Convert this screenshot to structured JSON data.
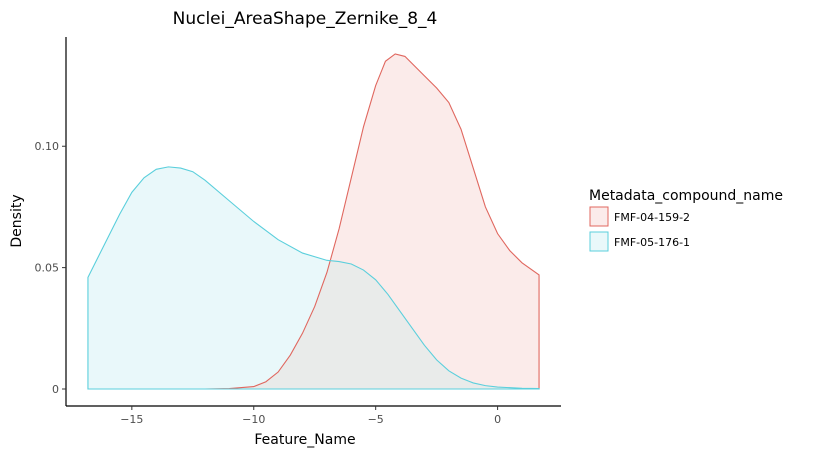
{
  "chart_data": {
    "type": "area",
    "title": "Nuclei_AreaShape_Zernike_8_4",
    "xlabel": "Feature_Name",
    "ylabel": "Density",
    "xlim": [
      -17.7,
      2.6
    ],
    "ylim": [
      -0.007,
      0.145
    ],
    "x_ticks": [
      -15,
      -10,
      -5,
      0
    ],
    "x_tick_labels": [
      "−15",
      "−10",
      "−5",
      "0"
    ],
    "y_ticks": [
      0,
      0.05,
      0.1
    ],
    "y_tick_labels": [
      "0",
      "0.05",
      "0.10"
    ],
    "grid": false,
    "legend": {
      "title": "Metadata_compound_name",
      "placement": "right"
    },
    "series": [
      {
        "name": "FMF-04-159-2",
        "color": "#E0675F",
        "fill": "#FBEBEA",
        "points": [
          [
            -16.8,
            0
          ],
          [
            -12,
            0
          ],
          [
            -11,
            0.0002
          ],
          [
            -10,
            0.001
          ],
          [
            -9.5,
            0.003
          ],
          [
            -9,
            0.007
          ],
          [
            -8.5,
            0.014
          ],
          [
            -8,
            0.023
          ],
          [
            -7.5,
            0.034
          ],
          [
            -7,
            0.048
          ],
          [
            -6.5,
            0.066
          ],
          [
            -6,
            0.087
          ],
          [
            -5.5,
            0.108
          ],
          [
            -5,
            0.125
          ],
          [
            -4.6,
            0.135
          ],
          [
            -4.2,
            0.138
          ],
          [
            -3.8,
            0.137
          ],
          [
            -3.4,
            0.133
          ],
          [
            -3,
            0.129
          ],
          [
            -2.5,
            0.124
          ],
          [
            -2,
            0.118
          ],
          [
            -1.5,
            0.107
          ],
          [
            -1,
            0.091
          ],
          [
            -0.5,
            0.075
          ],
          [
            0,
            0.064
          ],
          [
            0.5,
            0.057
          ],
          [
            1,
            0.052
          ],
          [
            1.7,
            0.047
          ]
        ]
      },
      {
        "name": "FMF-05-176-1",
        "color": "#5BCFDC",
        "fill": "#E9F8FA",
        "points": [
          [
            -16.8,
            0.046
          ],
          [
            -16,
            0.062
          ],
          [
            -15.5,
            0.072
          ],
          [
            -15,
            0.081
          ],
          [
            -14.5,
            0.087
          ],
          [
            -14,
            0.0905
          ],
          [
            -13.5,
            0.0915
          ],
          [
            -13,
            0.091
          ],
          [
            -12.5,
            0.0895
          ],
          [
            -12,
            0.086
          ],
          [
            -11,
            0.0775
          ],
          [
            -10,
            0.069
          ],
          [
            -9,
            0.0615
          ],
          [
            -8,
            0.056
          ],
          [
            -7,
            0.053
          ],
          [
            -6.5,
            0.0525
          ],
          [
            -6,
            0.0515
          ],
          [
            -5.5,
            0.049
          ],
          [
            -5,
            0.045
          ],
          [
            -4.5,
            0.039
          ],
          [
            -4,
            0.032
          ],
          [
            -3.5,
            0.025
          ],
          [
            -3,
            0.018
          ],
          [
            -2.5,
            0.012
          ],
          [
            -2,
            0.0075
          ],
          [
            -1.5,
            0.0045
          ],
          [
            -1,
            0.0025
          ],
          [
            -0.5,
            0.0014
          ],
          [
            0,
            0.0008
          ],
          [
            1,
            0.0003
          ],
          [
            1.7,
            0.0002
          ]
        ]
      }
    ],
    "overlap_fill": "#E9EBEA"
  }
}
